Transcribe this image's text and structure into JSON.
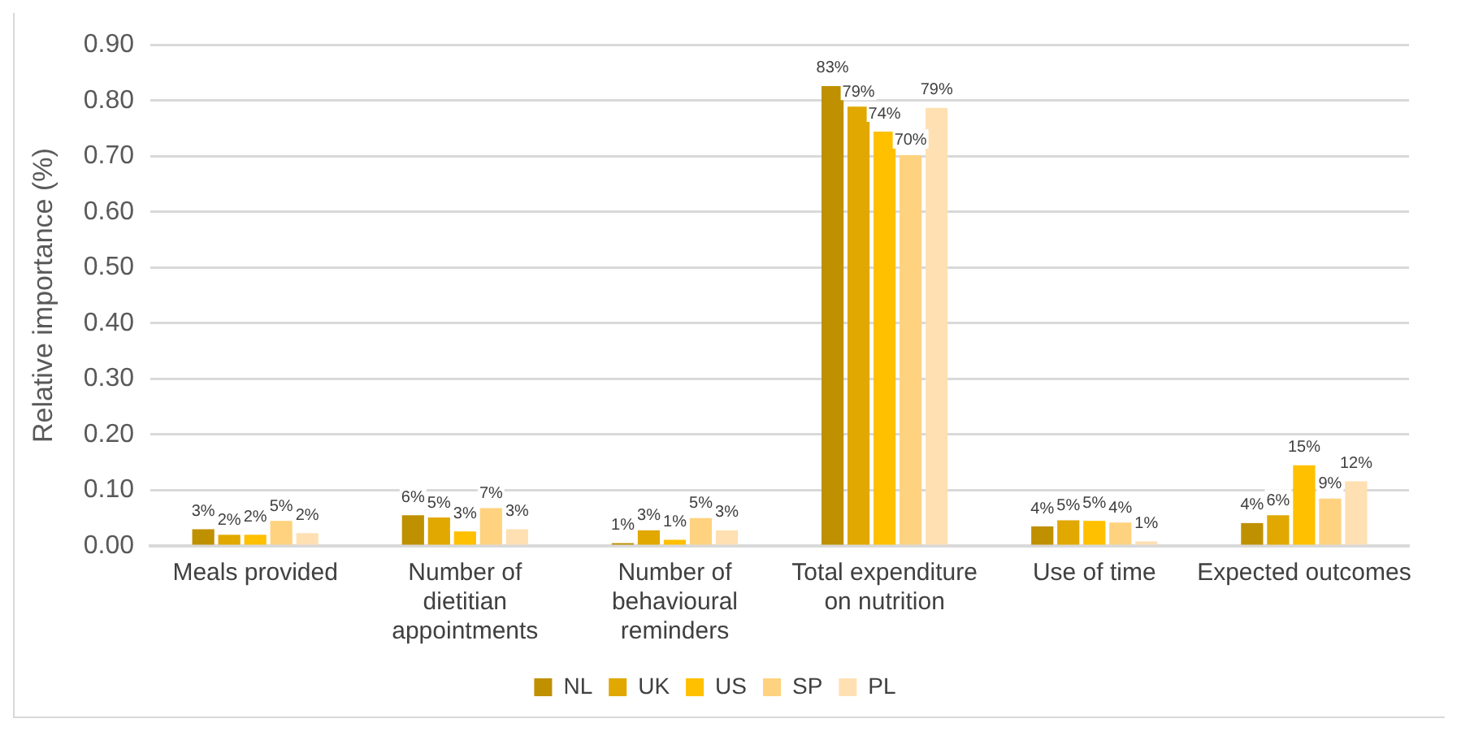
{
  "chart_data": {
    "type": "bar",
    "ylabel": "Relative importance (%)",
    "categories": [
      "Meals provided",
      "Number of dietitian appointments",
      "Number of behavioural reminders",
      "Total expenditure on nutrition",
      "Use of time",
      "Expected outcomes"
    ],
    "series": [
      {
        "name": "NL",
        "color": "#bf9000",
        "values": [
          0.03,
          0.055,
          0.005,
          0.826,
          0.035,
          0.041
        ],
        "value_labels": [
          "3%",
          "6%",
          "1%",
          "83%",
          "4%",
          "4%"
        ]
      },
      {
        "name": "UK",
        "color": "#e0a800",
        "values": [
          0.02,
          0.051,
          0.028,
          0.789,
          0.046,
          0.055
        ],
        "value_labels": [
          "2%",
          "5%",
          "3%",
          "79%",
          "5%",
          "6%"
        ]
      },
      {
        "name": "US",
        "color": "#ffc000",
        "values": [
          0.02,
          0.026,
          0.011,
          0.744,
          0.045,
          0.145
        ],
        "value_labels": [
          "2%",
          "3%",
          "1%",
          "74%",
          "5%",
          "15%"
        ]
      },
      {
        "name": "SP",
        "color": "#ffd27f",
        "values": [
          0.045,
          0.068,
          0.05,
          0.702,
          0.042,
          0.085
        ],
        "value_labels": [
          "5%",
          "7%",
          "5%",
          "70%",
          "4%",
          "9%"
        ]
      },
      {
        "name": "PL",
        "color": "#ffe0b3",
        "values": [
          0.023,
          0.03,
          0.028,
          0.787,
          0.008,
          0.116
        ],
        "value_labels": [
          "2%",
          "3%",
          "3%",
          "79%",
          "1%",
          "12%"
        ]
      }
    ],
    "ylim": [
      0,
      0.9
    ],
    "yticks": [
      {
        "value": 0,
        "label": "0.00"
      },
      {
        "value": 0.1,
        "label": "0.10"
      },
      {
        "value": 0.2,
        "label": "0.20"
      },
      {
        "value": 0.3,
        "label": "0.30"
      },
      {
        "value": 0.4,
        "label": "0.40"
      },
      {
        "value": 0.5,
        "label": "0.50"
      },
      {
        "value": 0.6,
        "label": "0.60"
      },
      {
        "value": 0.7,
        "label": "0.70"
      },
      {
        "value": 0.8,
        "label": "0.80"
      },
      {
        "value": 0.9,
        "label": "0.90"
      }
    ],
    "grid": "y",
    "legend": "bottom"
  }
}
